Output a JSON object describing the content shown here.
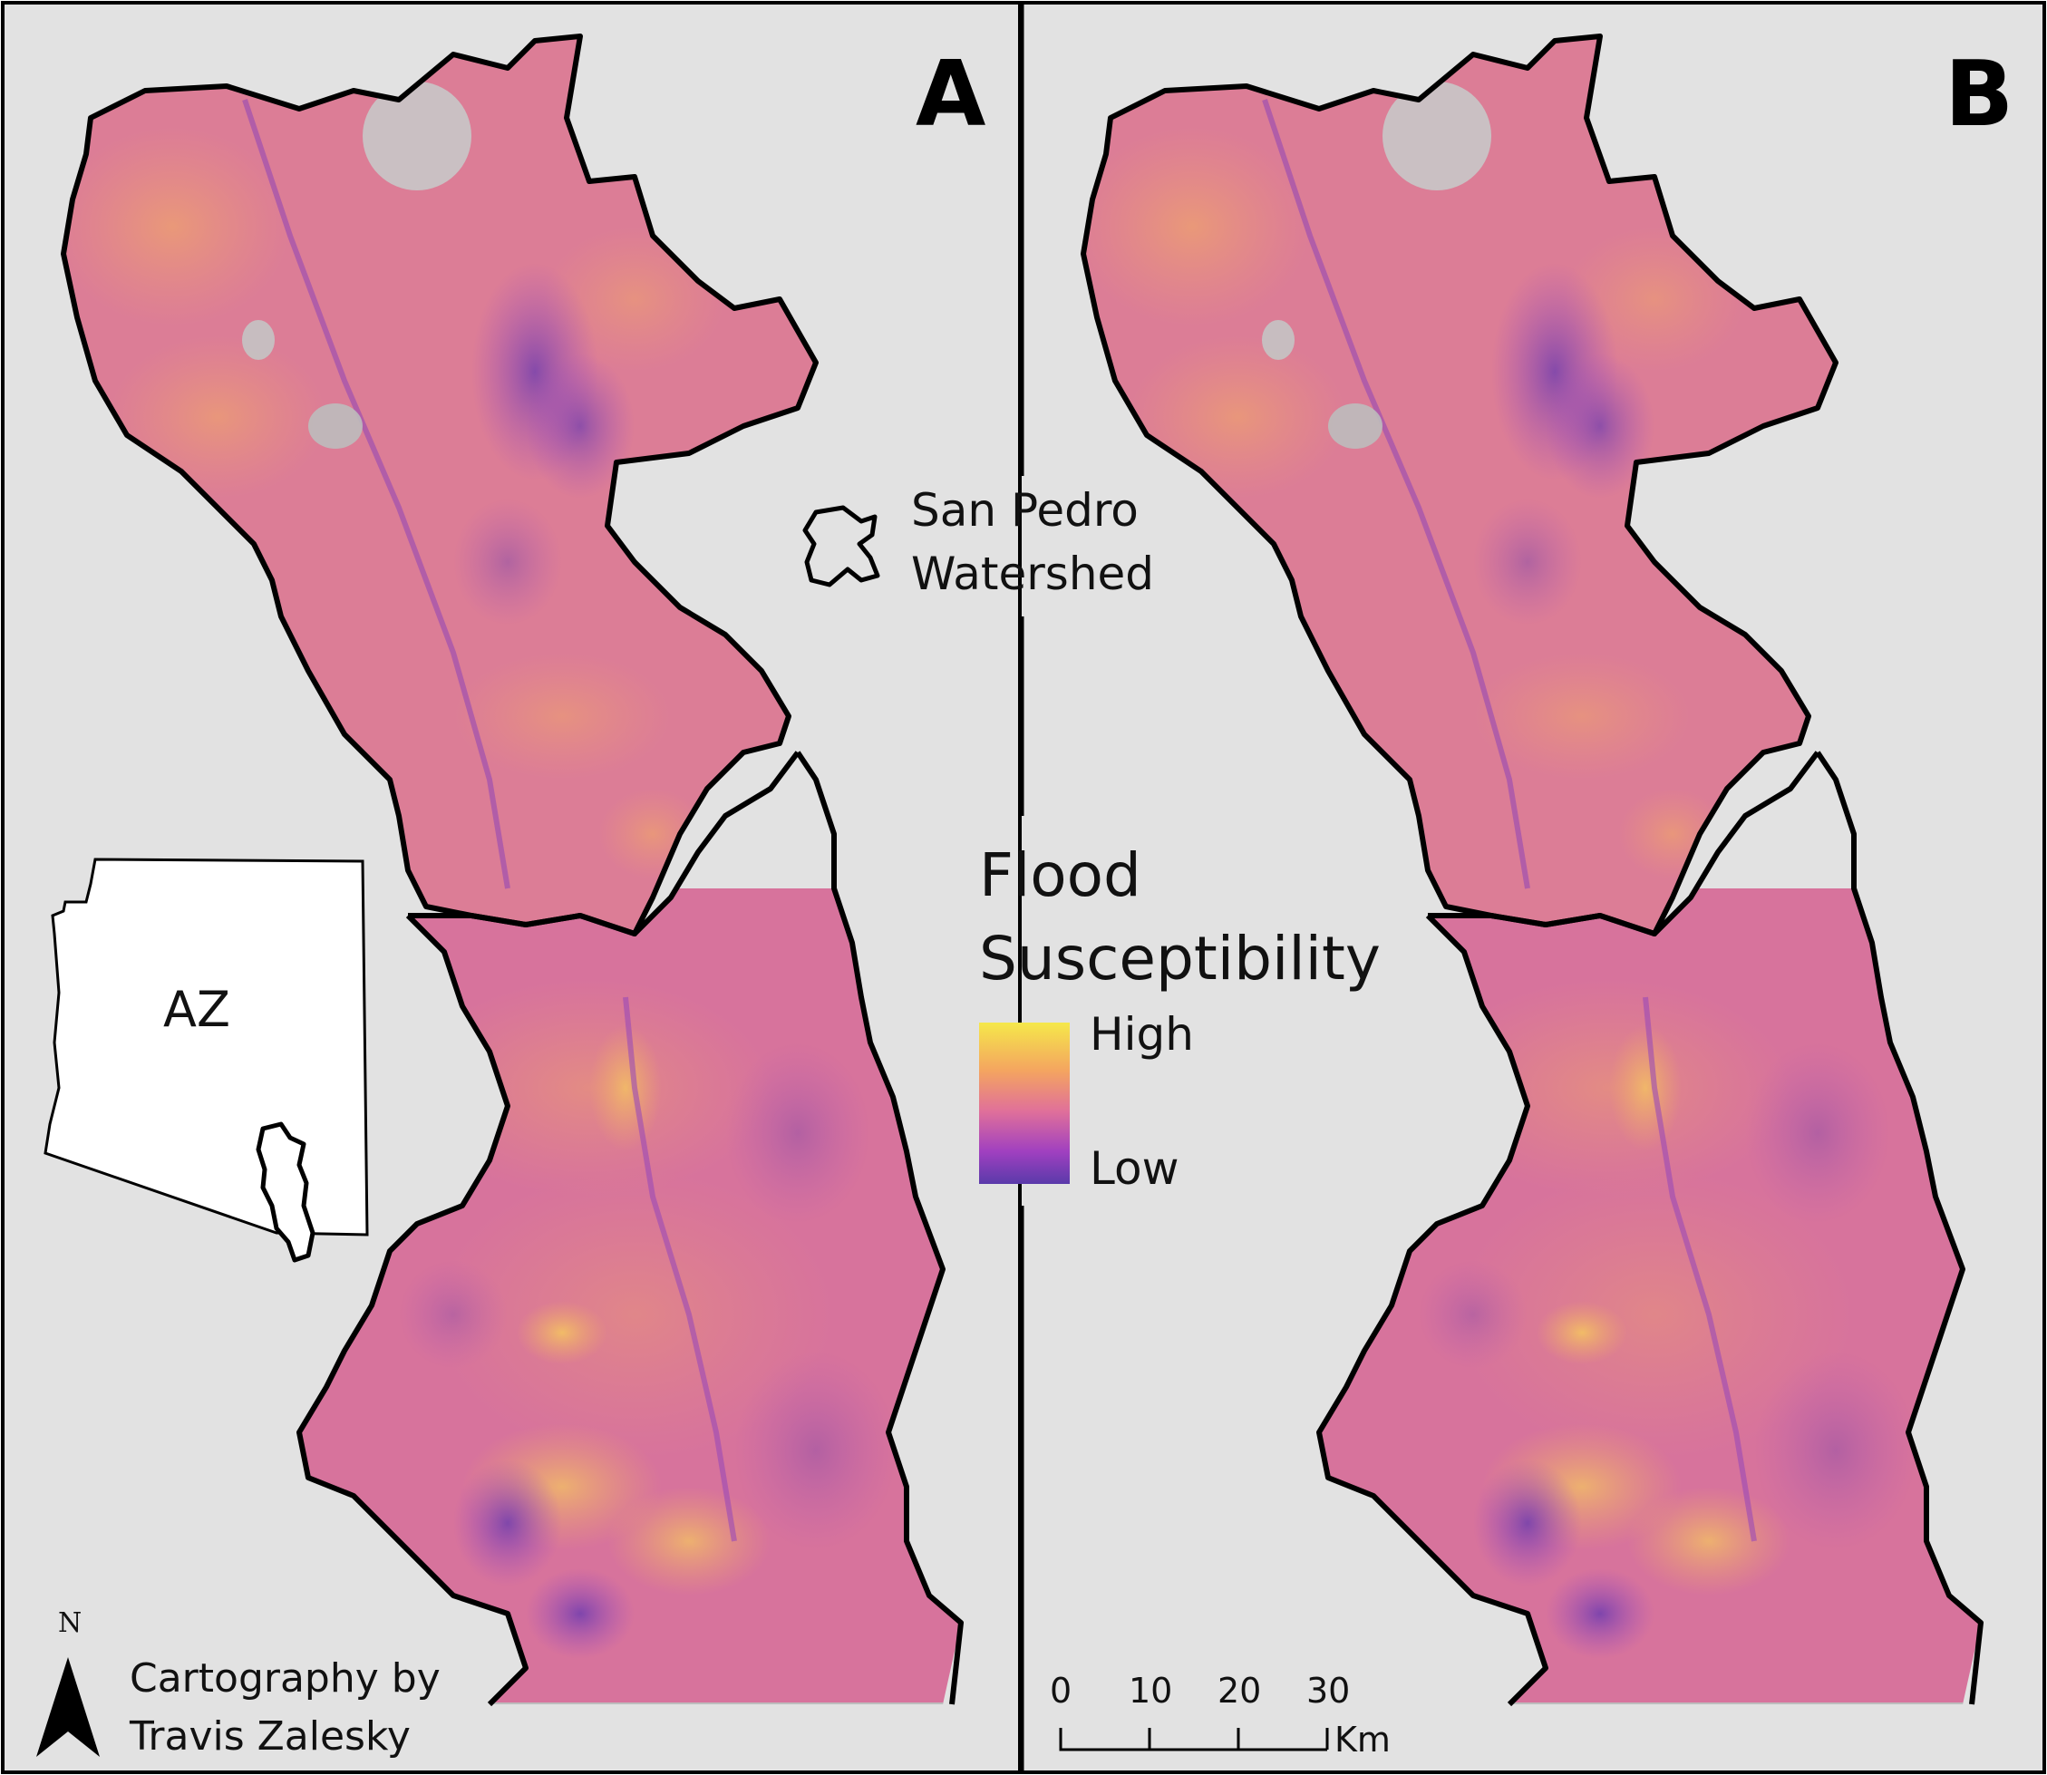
{
  "panels": [
    {
      "letter": "A"
    },
    {
      "letter": "B"
    }
  ],
  "inset": {
    "label": "AZ"
  },
  "watershed_key": {
    "line1": "San Pedro",
    "line2": "Watershed"
  },
  "legend": {
    "title_line1": "Flood",
    "title_line2": "Susceptibility",
    "high_label": "High",
    "low_label": "Low",
    "colors": {
      "high": "#f5e84a",
      "mid_high": "#f4a460",
      "mid": "#e0709a",
      "mid_low": "#a040c0",
      "low": "#5a3aaa"
    }
  },
  "north_arrow": {
    "label": "N"
  },
  "credit": {
    "line1": "Cartography by",
    "line2": "Travis Zalesky"
  },
  "scale_bar": {
    "ticks": [
      "0",
      "10",
      "20",
      "30"
    ],
    "unit": "Km"
  },
  "map_colors": {
    "background": "#e2e2e2",
    "base_fill": "#d9769a",
    "high_zone": "#f2a565",
    "mid_zone": "#e68a7c",
    "low_zone": "#9a46b6",
    "hillshade": "#c2c2c2",
    "outline": "#000000"
  }
}
